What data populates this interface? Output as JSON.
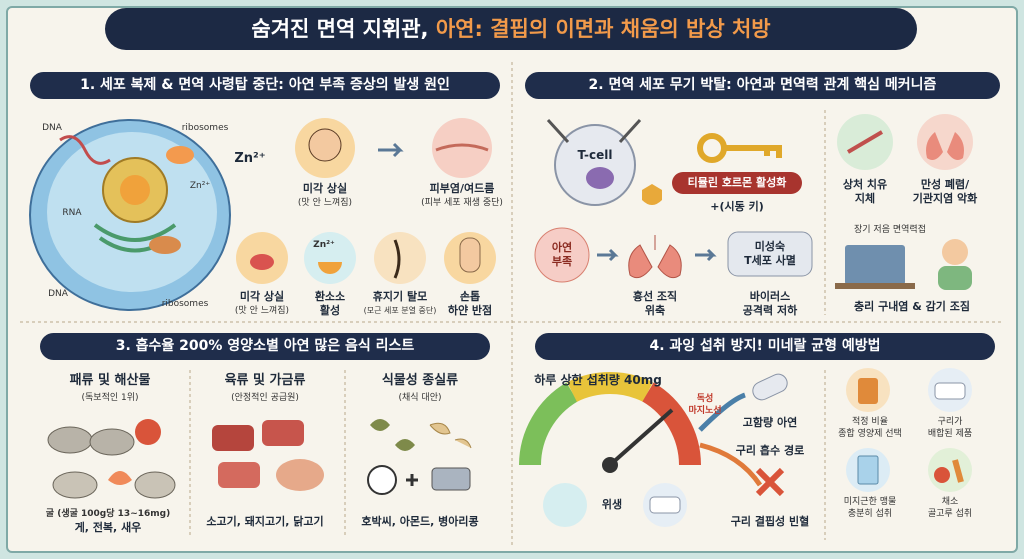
{
  "header": {
    "title_main": "숨겨진 면역 지휘관,",
    "title_highlight": "아연: 결핍의 이면과 채움의 밥상 처방"
  },
  "section1": {
    "heading": "1. 세포 복제 & 면역 사령탑 중단: 아연 부족 증상의 발생 원인",
    "diagram_labels": [
      "DNA",
      "ribosomes",
      "Zn²⁺",
      "Zn²⁺",
      "RNA",
      "DNA",
      "ribosomes"
    ],
    "items": [
      {
        "name": "미각 상실",
        "note": "(맛 안 느껴짐)"
      },
      {
        "name": "피부염/여드름",
        "note": "(피부 세포 재생 중단)"
      },
      {
        "name": "미각 상실",
        "note": "(맛 안 느껴짐)"
      },
      {
        "icon_label": "Zn²⁺",
        "name": "환소소\n활성"
      },
      {
        "name": "휴지기 탈모",
        "note": "(모근 세포 분열 중단)"
      },
      {
        "name": "손톱\n하얀 반점"
      }
    ]
  },
  "section2": {
    "heading": "2. 면역 세포 무기 박탈: 아연과 면역력 관계 핵심 메커니즘",
    "cell_label": "T-cell",
    "activation": "티뮬린 호르몬 활성화",
    "activation_note": "+(시동 키)",
    "flow": [
      "아연\n부족",
      "흉선 조직\n위축",
      "미성숙\nT세포 사멸",
      "바이러스\n공격력 저하"
    ],
    "effects": [
      "상처 치유\n지체",
      "만성 폐렴/\n기관지염 악화"
    ],
    "long_term_label": "장기 저음 면역력접",
    "long_term_effect": "충리 구내염 & 감기 조짐"
  },
  "section3": {
    "heading": "3. 흡수율 200% 영양소별 아연 많은 음식 리스트",
    "groups": [
      {
        "name": "패류 및 해산물",
        "note": "(독보적인 1위)",
        "foods": [
          "굴 (생굴 100g당 13~16mg)",
          "게, 전복, 새우"
        ]
      },
      {
        "name": "육류 및 가금류",
        "note": "(안정적인 공급원)",
        "foods": [
          "소고기, 돼지고기, 닭고기"
        ]
      },
      {
        "name": "식물성 종실류",
        "note": "(채식 대안)",
        "foods": [
          "호박씨, 아몬드, 병아리콩"
        ]
      }
    ]
  },
  "section4": {
    "heading": "4. 과잉 섭취 방지! 미네랄 균형 예방법",
    "limit": "하루 상한 섭취량 40mg",
    "toxic_line": "독성\n마지노선",
    "copper_flow": [
      "고함량 아연",
      "구리 흡수 경로",
      "구리 결핍성 빈혈"
    ],
    "hygiene": "위생",
    "tips": [
      "적정 비율\n종합 영양제 선택",
      "구리가\n배합된 제품",
      "미지근한 맹물\n충분히 섭취",
      "채소\n골고루 섭취"
    ]
  }
}
